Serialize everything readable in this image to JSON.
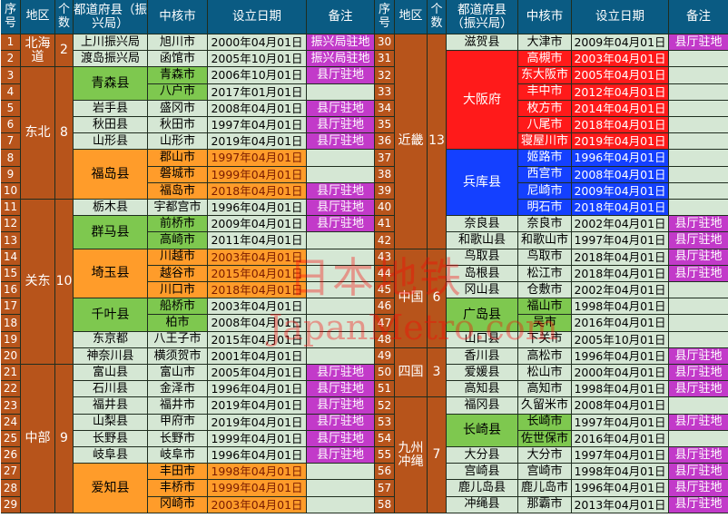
{
  "headers": {
    "no": "序号",
    "region": "地区",
    "count": "个数",
    "pref": "都道府县（振兴局）",
    "city": "中核市",
    "date": "设立日期",
    "note": "备注"
  },
  "notes": {
    "shinkokyoku": "振兴局驻地",
    "kencho": "县厅驻地"
  },
  "watermark": {
    "line1": "日本地铁",
    "line2": "JapanMetro.com"
  },
  "colors": {
    "header": "#0a5b83",
    "region": "#b7541b",
    "light": "#d5e7d4",
    "green": "#7ec84f",
    "orange": "#ff9c2a",
    "red": "#ff1a1a",
    "blue": "#1440ff",
    "magenta": "#c23ac9"
  },
  "left": {
    "regions": [
      {
        "name": "北海道",
        "count": "2",
        "start": 1,
        "rows": 2
      },
      {
        "name": "东北",
        "count": "8",
        "start": 3,
        "rows": 8
      },
      {
        "name": "关东",
        "count": "10",
        "start": 11,
        "rows": 10
      },
      {
        "name": "中部",
        "count": "9",
        "start": 21,
        "rows": 9
      }
    ],
    "prefs": [
      {
        "name": "上川振兴局",
        "start": 1,
        "rows": 1,
        "style": "plain"
      },
      {
        "name": "渡岛振兴局",
        "start": 2,
        "rows": 1,
        "style": "plain"
      },
      {
        "name": "青森县",
        "start": 3,
        "rows": 2,
        "style": "green"
      },
      {
        "name": "岩手县",
        "start": 5,
        "rows": 1,
        "style": "plain"
      },
      {
        "name": "秋田县",
        "start": 6,
        "rows": 1,
        "style": "plain"
      },
      {
        "name": "山形县",
        "start": 7,
        "rows": 1,
        "style": "plain"
      },
      {
        "name": "福岛县",
        "start": 8,
        "rows": 3,
        "style": "orange"
      },
      {
        "name": "栃木县",
        "start": 11,
        "rows": 1,
        "style": "plain"
      },
      {
        "name": "群马县",
        "start": 12,
        "rows": 2,
        "style": "green"
      },
      {
        "name": "埼玉县",
        "start": 14,
        "rows": 3,
        "style": "orange"
      },
      {
        "name": "千叶县",
        "start": 17,
        "rows": 2,
        "style": "green"
      },
      {
        "name": "东京都",
        "start": 19,
        "rows": 1,
        "style": "plain"
      },
      {
        "name": "神奈川县",
        "start": 20,
        "rows": 1,
        "style": "plain"
      },
      {
        "name": "富山县",
        "start": 21,
        "rows": 1,
        "style": "plain"
      },
      {
        "name": "石川县",
        "start": 22,
        "rows": 1,
        "style": "plain"
      },
      {
        "name": "福井县",
        "start": 23,
        "rows": 1,
        "style": "plain"
      },
      {
        "name": "山梨县",
        "start": 24,
        "rows": 1,
        "style": "plain"
      },
      {
        "name": "长野县",
        "start": 25,
        "rows": 1,
        "style": "plain"
      },
      {
        "name": "岐阜县",
        "start": 26,
        "rows": 1,
        "style": "plain"
      },
      {
        "name": "爱知县",
        "start": 27,
        "rows": 3,
        "style": "orange"
      }
    ],
    "rows": [
      {
        "no": "1",
        "city": "旭川市",
        "date": "2000年04月01日",
        "note": "shinkokyoku"
      },
      {
        "no": "2",
        "city": "函馆市",
        "date": "2005年10月01日",
        "note": "shinkokyoku"
      },
      {
        "no": "3",
        "city": "青森市",
        "date": "2006年10月01日",
        "note": "kencho"
      },
      {
        "no": "4",
        "city": "八户市",
        "date": "2017年01月01日",
        "note": ""
      },
      {
        "no": "5",
        "city": "盛冈市",
        "date": "2008年04月01日",
        "note": "kencho"
      },
      {
        "no": "6",
        "city": "秋田市",
        "date": "1997年04月01日",
        "note": "kencho"
      },
      {
        "no": "7",
        "city": "山形市",
        "date": "2019年04月01日",
        "note": "kencho"
      },
      {
        "no": "8",
        "city": "郡山市",
        "date": "1997年04月01日",
        "note": ""
      },
      {
        "no": "9",
        "city": "磐城市",
        "date": "1999年04月01日",
        "note": ""
      },
      {
        "no": "10",
        "city": "福岛市",
        "date": "2018年04月01日",
        "note": "kencho"
      },
      {
        "no": "11",
        "city": "宇都宫市",
        "date": "1996年04月01日",
        "note": "kencho"
      },
      {
        "no": "12",
        "city": "前桥市",
        "date": "2009年04月01日",
        "note": "kencho"
      },
      {
        "no": "13",
        "city": "高崎市",
        "date": "2011年04月01日",
        "note": ""
      },
      {
        "no": "14",
        "city": "川越市",
        "date": "2003年04月01日",
        "note": ""
      },
      {
        "no": "15",
        "city": "越谷市",
        "date": "2015年04月01日",
        "note": ""
      },
      {
        "no": "16",
        "city": "川口市",
        "date": "2018年04月01日",
        "note": ""
      },
      {
        "no": "17",
        "city": "船桥市",
        "date": "2003年04月01日",
        "note": ""
      },
      {
        "no": "18",
        "city": "柏市",
        "date": "2008年04月01日",
        "note": ""
      },
      {
        "no": "19",
        "city": "八王子市",
        "date": "2015年04月01日",
        "note": ""
      },
      {
        "no": "20",
        "city": "横须贺市",
        "date": "2001年04月01日",
        "note": ""
      },
      {
        "no": "21",
        "city": "富山市",
        "date": "2005年04月01日",
        "note": "kencho"
      },
      {
        "no": "22",
        "city": "金泽市",
        "date": "1996年04月01日",
        "note": "kencho"
      },
      {
        "no": "23",
        "city": "福井市",
        "date": "2019年04月01日",
        "note": "kencho"
      },
      {
        "no": "24",
        "city": "甲府市",
        "date": "2019年04月01日",
        "note": "kencho"
      },
      {
        "no": "25",
        "city": "长野市",
        "date": "1999年04月01日",
        "note": "kencho"
      },
      {
        "no": "26",
        "city": "岐阜市",
        "date": "1996年04月01日",
        "note": "kencho"
      },
      {
        "no": "27",
        "city": "丰田市",
        "date": "1998年04月01日",
        "note": ""
      },
      {
        "no": "28",
        "city": "丰桥市",
        "date": "1999年04月01日",
        "note": ""
      },
      {
        "no": "29",
        "city": "冈崎市",
        "date": "2003年04月01日",
        "note": ""
      }
    ]
  },
  "right": {
    "regions": [
      {
        "name": "近畿",
        "count": "13",
        "start": 1,
        "rows": 13
      },
      {
        "name": "中国",
        "count": "6",
        "start": 14,
        "rows": 6
      },
      {
        "name": "四国",
        "count": "3",
        "start": 20,
        "rows": 3
      },
      {
        "name": "九州冲绳",
        "count": "7",
        "start": 23,
        "rows": 7
      }
    ],
    "prefs": [
      {
        "name": "滋贺县",
        "start": 1,
        "rows": 1,
        "style": "plain"
      },
      {
        "name": "大阪府",
        "start": 2,
        "rows": 6,
        "style": "red"
      },
      {
        "name": "兵库县",
        "start": 8,
        "rows": 4,
        "style": "blue"
      },
      {
        "name": "奈良县",
        "start": 12,
        "rows": 1,
        "style": "plain"
      },
      {
        "name": "和歌山县",
        "start": 13,
        "rows": 1,
        "style": "plain"
      },
      {
        "name": "鸟取县",
        "start": 14,
        "rows": 1,
        "style": "plain"
      },
      {
        "name": "岛根县",
        "start": 15,
        "rows": 1,
        "style": "plain"
      },
      {
        "name": "冈山县",
        "start": 16,
        "rows": 1,
        "style": "plain"
      },
      {
        "name": "广岛县",
        "start": 17,
        "rows": 2,
        "style": "green"
      },
      {
        "name": "山口县",
        "start": 19,
        "rows": 1,
        "style": "plain"
      },
      {
        "name": "香川县",
        "start": 20,
        "rows": 1,
        "style": "plain"
      },
      {
        "name": "爱媛县",
        "start": 21,
        "rows": 1,
        "style": "plain"
      },
      {
        "name": "高知县",
        "start": 22,
        "rows": 1,
        "style": "plain"
      },
      {
        "name": "福冈县",
        "start": 23,
        "rows": 1,
        "style": "plain"
      },
      {
        "name": "长崎县",
        "start": 24,
        "rows": 2,
        "style": "green"
      },
      {
        "name": "大分县",
        "start": 26,
        "rows": 1,
        "style": "plain"
      },
      {
        "name": "宫崎县",
        "start": 27,
        "rows": 1,
        "style": "plain"
      },
      {
        "name": "鹿儿岛县",
        "start": 28,
        "rows": 1,
        "style": "plain"
      },
      {
        "name": "冲绳县",
        "start": 29,
        "rows": 1,
        "style": "plain"
      }
    ],
    "rows": [
      {
        "no": "30",
        "city": "大津市",
        "date": "2009年04月01日",
        "note": "kencho"
      },
      {
        "no": "31",
        "city": "高槻市",
        "date": "2003年04月01日",
        "note": ""
      },
      {
        "no": "32",
        "city": "东大阪市",
        "date": "2005年04月01日",
        "note": ""
      },
      {
        "no": "33",
        "city": "丰中市",
        "date": "2012年04月01日",
        "note": ""
      },
      {
        "no": "34",
        "city": "枚方市",
        "date": "2014年04月01日",
        "note": ""
      },
      {
        "no": "35",
        "city": "八尾市",
        "date": "2018年04月01日",
        "note": ""
      },
      {
        "no": "36",
        "city": "寝屋川市",
        "date": "2019年04月01日",
        "note": ""
      },
      {
        "no": "37",
        "city": "姬路市",
        "date": "1996年04月01日",
        "note": ""
      },
      {
        "no": "38",
        "city": "西宫市",
        "date": "2008年04月01日",
        "note": ""
      },
      {
        "no": "39",
        "city": "尼崎市",
        "date": "2009年04月01日",
        "note": ""
      },
      {
        "no": "40",
        "city": "明石市",
        "date": "2018年04月01日",
        "note": ""
      },
      {
        "no": "41",
        "city": "奈良市",
        "date": "2002年04月01日",
        "note": "kencho"
      },
      {
        "no": "42",
        "city": "和歌山市",
        "date": "1997年04月01日",
        "note": "kencho"
      },
      {
        "no": "43",
        "city": "鸟取市",
        "date": "2018年04月01日",
        "note": "kencho"
      },
      {
        "no": "44",
        "city": "松江市",
        "date": "2018年04月01日",
        "note": "kencho"
      },
      {
        "no": "45",
        "city": "仓敷市",
        "date": "2002年04月01日",
        "note": ""
      },
      {
        "no": "46",
        "city": "福山市",
        "date": "1998年04月01日",
        "note": ""
      },
      {
        "no": "47",
        "city": "吴市",
        "date": "2016年04月01日",
        "note": ""
      },
      {
        "no": "48",
        "city": "下关市",
        "date": "2005年10月01日",
        "note": ""
      },
      {
        "no": "49",
        "city": "高松市",
        "date": "1996年04月01日",
        "note": "kencho"
      },
      {
        "no": "50",
        "city": "松山市",
        "date": "2000年04月01日",
        "note": "kencho"
      },
      {
        "no": "51",
        "city": "高知市",
        "date": "1998年04月01日",
        "note": "kencho"
      },
      {
        "no": "52",
        "city": "久留米市",
        "date": "2008年04月01日",
        "note": ""
      },
      {
        "no": "53",
        "city": "长崎市",
        "date": "1997年04月01日",
        "note": "kencho"
      },
      {
        "no": "54",
        "city": "佐世保市",
        "date": "2016年04月01日",
        "note": ""
      },
      {
        "no": "55",
        "city": "大分市",
        "date": "1997年04月01日",
        "note": "kencho"
      },
      {
        "no": "56",
        "city": "宫崎市",
        "date": "1998年04月01日",
        "note": "kencho"
      },
      {
        "no": "57",
        "city": "鹿儿岛市",
        "date": "1996年04月01日",
        "note": "kencho"
      },
      {
        "no": "58",
        "city": "那霸市",
        "date": "2013年04月01日",
        "note": "kencho"
      }
    ]
  }
}
